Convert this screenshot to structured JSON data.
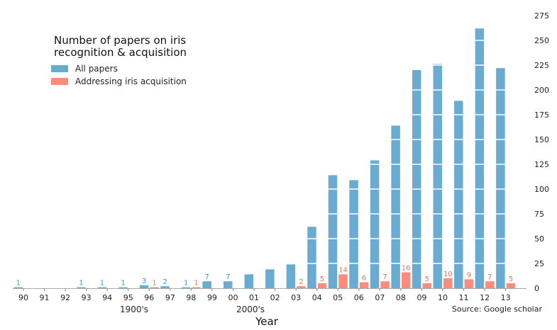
{
  "chart_data": {
    "type": "bar",
    "title_lines": [
      "Number of papers on iris",
      "recognition & acquisition"
    ],
    "xlabel": "Year",
    "ylabel": "",
    "era_labels": [
      "1900's",
      "2000's"
    ],
    "source": "Source: Google scholar",
    "categories": [
      "90",
      "91",
      "92",
      "93",
      "94",
      "95",
      "96",
      "97",
      "98",
      "99",
      "00",
      "01",
      "02",
      "03",
      "04",
      "05",
      "06",
      "07",
      "08",
      "09",
      "10",
      "11",
      "12",
      "13"
    ],
    "series": [
      {
        "name": "All papers",
        "color": "#6aabd2",
        "label_color": "#4a90c2",
        "values": [
          1,
          0,
          0,
          1,
          1,
          1,
          3,
          2,
          1,
          7,
          7,
          14,
          19,
          24,
          62,
          114,
          109,
          129,
          164,
          220,
          226,
          189,
          262,
          222
        ],
        "labels": [
          "1",
          "",
          "",
          "1",
          "1",
          "1",
          "3",
          "2",
          "1",
          "7",
          "7",
          "",
          "",
          "",
          "",
          "",
          "",
          "",
          "",
          "",
          "",
          "",
          "",
          ""
        ]
      },
      {
        "name": "Addressing iris acquisition",
        "color": "#ff8c7a",
        "label_color": "#e8735f",
        "values": [
          0,
          0,
          0,
          0,
          0,
          0,
          1,
          0,
          1,
          0,
          0,
          0,
          0,
          2,
          5,
          14,
          6,
          7,
          16,
          5,
          10,
          9,
          7,
          5
        ],
        "labels": [
          "",
          "",
          "",
          "",
          "",
          "",
          "1",
          "",
          "1",
          "",
          "",
          "",
          "",
          "2",
          "5",
          "14",
          "6",
          "7",
          "16",
          "5",
          "10",
          "9",
          "7",
          "5"
        ]
      }
    ],
    "yticks": [
      "0",
      "25",
      "50",
      "75",
      "100",
      "125",
      "150",
      "175",
      "200",
      "225",
      "250",
      "275"
    ],
    "ylim": [
      0,
      275
    ],
    "grid": true,
    "legend_position": "top-left"
  }
}
